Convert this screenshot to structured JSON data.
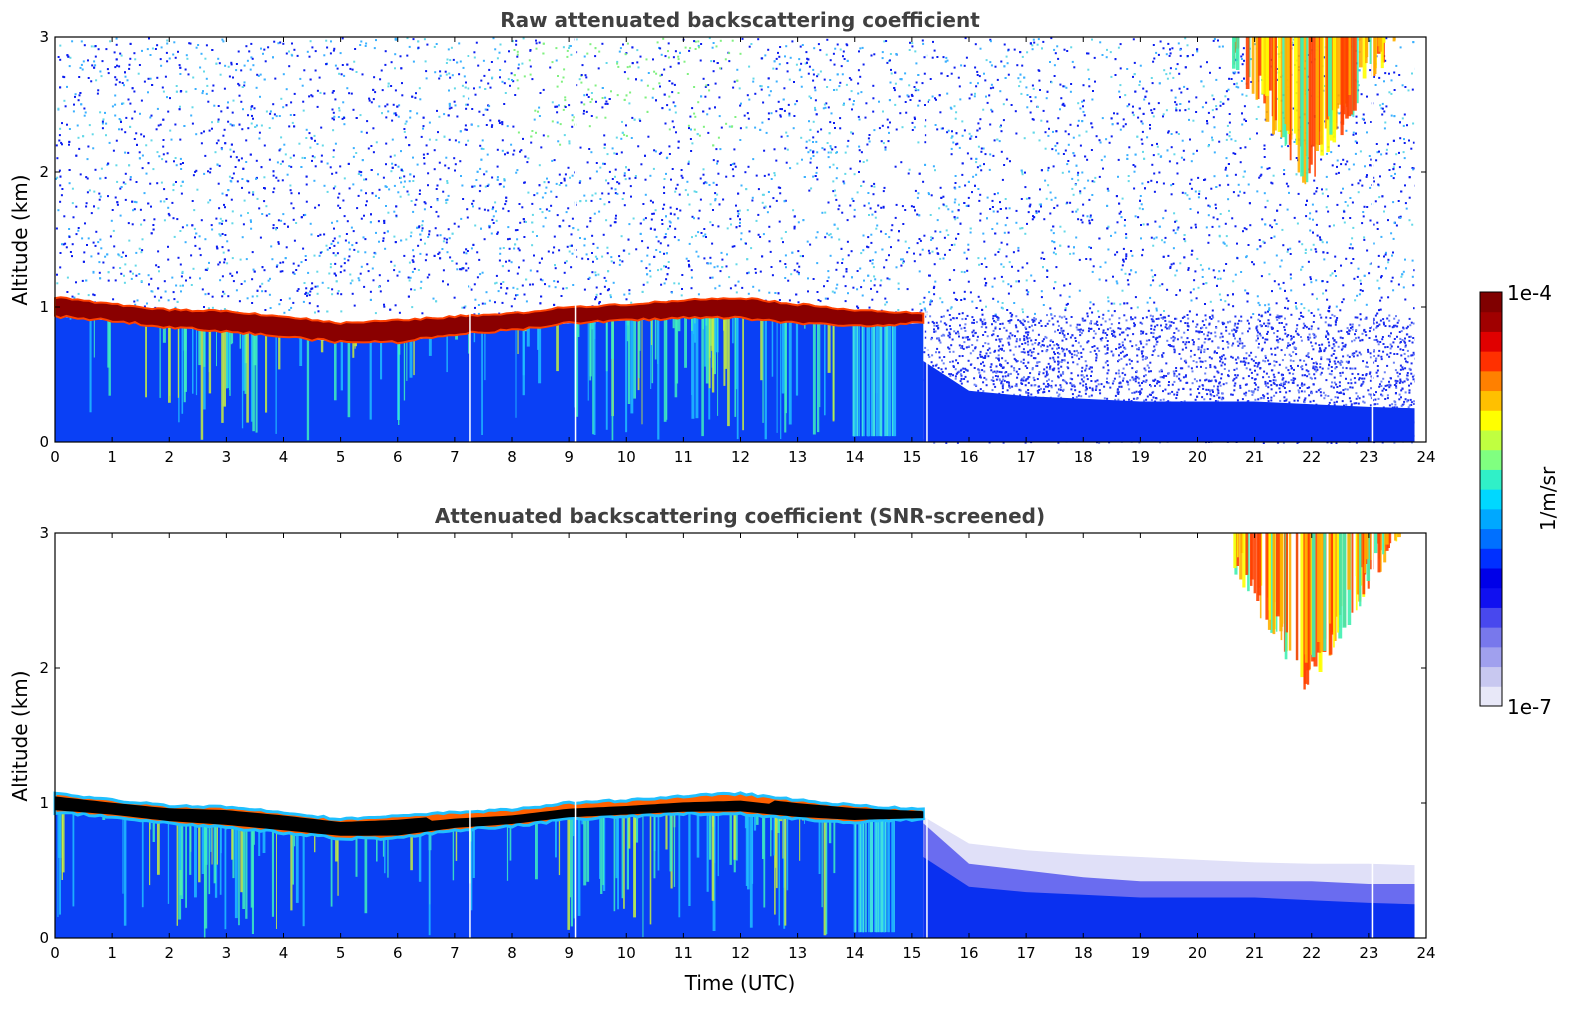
{
  "chart_data": [
    {
      "type": "heatmap",
      "title": "Raw attenuated backscattering coefficient",
      "ylabel": "Altitude (km)",
      "xlabel": "",
      "xlim": [
        0,
        24
      ],
      "ylim": [
        0,
        3
      ],
      "x_ticks": [
        "0",
        "1",
        "2",
        "3",
        "4",
        "5",
        "6",
        "7",
        "8",
        "9",
        "10",
        "11",
        "12",
        "13",
        "14",
        "15",
        "16",
        "17",
        "18",
        "19",
        "20",
        "21",
        "22",
        "23",
        "24"
      ],
      "y_ticks": [
        "0",
        "1",
        "2",
        "3"
      ],
      "data_end_time": 23.8,
      "gaps": [
        7.25,
        9.1,
        15.25,
        23.05
      ],
      "layer_top_km": [
        [
          0,
          1.07
        ],
        [
          1,
          1.02
        ],
        [
          2,
          0.98
        ],
        [
          3,
          0.97
        ],
        [
          4,
          0.93
        ],
        [
          5,
          0.88
        ],
        [
          6,
          0.9
        ],
        [
          7,
          0.93
        ],
        [
          8,
          0.95
        ],
        [
          9,
          1.0
        ],
        [
          10,
          1.02
        ],
        [
          11,
          1.05
        ],
        [
          12,
          1.07
        ],
        [
          13,
          1.02
        ],
        [
          14,
          0.98
        ],
        [
          15.2,
          0.95
        ]
      ],
      "layer_base_km": [
        [
          0,
          0.93
        ],
        [
          1,
          0.9
        ],
        [
          2,
          0.85
        ],
        [
          3,
          0.82
        ],
        [
          4,
          0.78
        ],
        [
          5,
          0.74
        ],
        [
          6,
          0.74
        ],
        [
          7,
          0.8
        ],
        [
          8,
          0.83
        ],
        [
          9,
          0.88
        ],
        [
          10,
          0.9
        ],
        [
          11,
          0.92
        ],
        [
          12,
          0.92
        ],
        [
          13,
          0.88
        ],
        [
          14,
          0.86
        ],
        [
          15.2,
          0.88
        ]
      ],
      "high_cloud": {
        "start": 20.6,
        "end": 23.8,
        "base_km": 1.85
      },
      "screened": false
    },
    {
      "type": "heatmap",
      "title": "Attenuated backscattering coefficient (SNR-screened)",
      "ylabel": "Altitude (km)",
      "xlabel": "Time (UTC)",
      "xlim": [
        0,
        24
      ],
      "ylim": [
        0,
        3
      ],
      "x_ticks": [
        "0",
        "1",
        "2",
        "3",
        "4",
        "5",
        "6",
        "7",
        "8",
        "9",
        "10",
        "11",
        "12",
        "13",
        "14",
        "15",
        "16",
        "17",
        "18",
        "19",
        "20",
        "21",
        "22",
        "23",
        "24"
      ],
      "y_ticks": [
        "0",
        "1",
        "2",
        "3"
      ],
      "data_end_time": 23.8,
      "gaps": [
        7.25,
        9.1,
        15.25,
        23.05
      ],
      "layer_top_km": [
        [
          0,
          1.07
        ],
        [
          1,
          1.02
        ],
        [
          2,
          0.98
        ],
        [
          3,
          0.97
        ],
        [
          4,
          0.93
        ],
        [
          5,
          0.88
        ],
        [
          6,
          0.9
        ],
        [
          7,
          0.93
        ],
        [
          8,
          0.95
        ],
        [
          9,
          1.0
        ],
        [
          10,
          1.02
        ],
        [
          11,
          1.05
        ],
        [
          12,
          1.07
        ],
        [
          13,
          1.02
        ],
        [
          14,
          0.98
        ],
        [
          15.2,
          0.95
        ]
      ],
      "layer_base_km": [
        [
          0,
          0.93
        ],
        [
          1,
          0.9
        ],
        [
          2,
          0.85
        ],
        [
          3,
          0.82
        ],
        [
          4,
          0.78
        ],
        [
          5,
          0.74
        ],
        [
          6,
          0.74
        ],
        [
          7,
          0.8
        ],
        [
          8,
          0.83
        ],
        [
          9,
          0.88
        ],
        [
          10,
          0.9
        ],
        [
          11,
          0.92
        ],
        [
          12,
          0.92
        ],
        [
          13,
          0.88
        ],
        [
          14,
          0.86
        ],
        [
          15.2,
          0.88
        ]
      ],
      "high_cloud": {
        "start": 20.6,
        "end": 23.8,
        "base_km": 1.8
      },
      "screened": true
    }
  ],
  "colorbar": {
    "label": "1/m/sr",
    "max_label": "1e-4",
    "min_label": "1e-7",
    "colors": [
      "#e8e8f8",
      "#c8c8f0",
      "#a0a0ee",
      "#7878ec",
      "#4848ee",
      "#1010f0",
      "#0000e8",
      "#0030ff",
      "#0070ff",
      "#00a8ff",
      "#00d8ff",
      "#30f0c8",
      "#80ff80",
      "#c0ff40",
      "#ffff00",
      "#ffc000",
      "#ff8000",
      "#ff3000",
      "#e00000",
      "#a00000",
      "#800000"
    ]
  }
}
